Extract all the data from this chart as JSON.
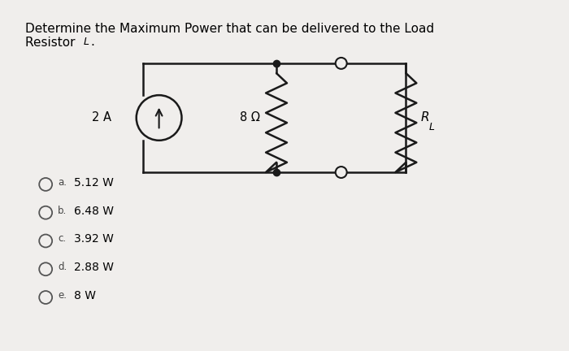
{
  "title_line1": "Determine the Maximum Power that can be delivered to the Load",
  "title_line2": "Resistor R",
  "title_line2_sub": "L",
  "title_line2_end": ".",
  "bg_color": "#f0eeec",
  "wire_color": "#1a1a1a",
  "current_source_label": "2 A",
  "resistor_label": "8 Ω",
  "rl_label": "R",
  "rl_sub": "L",
  "choices": [
    {
      "label": "a.",
      "value": "5.12 W"
    },
    {
      "label": "b.",
      "value": "6.48 W"
    },
    {
      "label": "c.",
      "value": "3.92 W"
    },
    {
      "label": "d.",
      "value": "2.88 W"
    },
    {
      "label": "e.",
      "value": "8 W"
    }
  ]
}
